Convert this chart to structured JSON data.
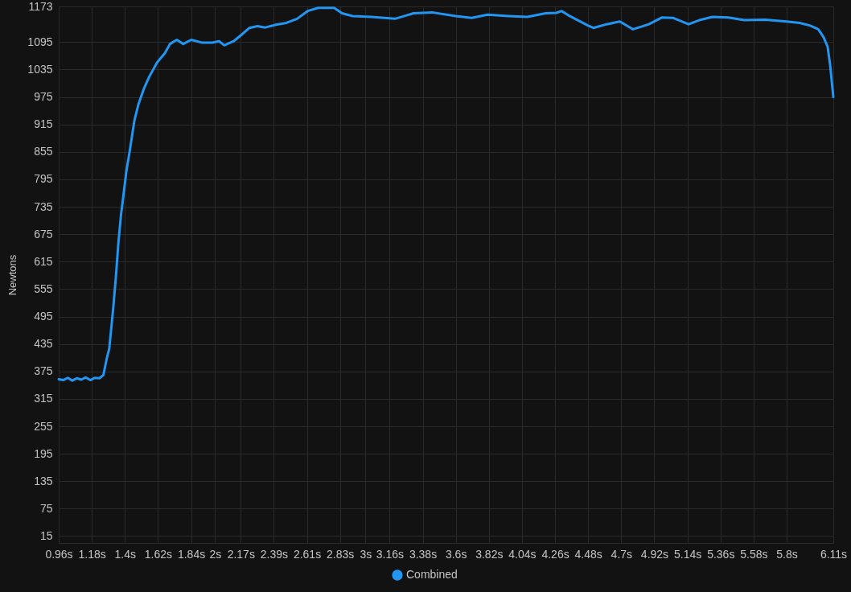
{
  "chart_data": {
    "type": "line",
    "ylabel": "Newtons",
    "x": [
      0.96,
      0.99,
      1.02,
      1.05,
      1.08,
      1.11,
      1.14,
      1.17,
      1.2,
      1.23,
      1.257,
      1.278,
      1.296,
      1.322,
      1.34,
      1.357,
      1.375,
      1.384,
      1.41,
      1.433,
      1.463,
      1.489,
      1.525,
      1.56,
      1.613,
      1.666,
      1.7,
      1.745,
      1.788,
      1.841,
      1.911,
      1.982,
      2.026,
      2.061,
      2.123,
      2.175,
      2.228,
      2.281,
      2.334,
      2.404,
      2.474,
      2.545,
      2.615,
      2.686,
      2.791,
      2.844,
      2.914,
      3.038,
      3.196,
      3.319,
      3.442,
      3.6,
      3.706,
      3.811,
      3.952,
      4.075,
      4.198,
      4.269,
      4.304,
      4.357,
      4.48,
      4.515,
      4.603,
      4.691,
      4.779,
      4.884,
      4.972,
      5.043,
      5.148,
      5.219,
      5.307,
      5.412,
      5.518,
      5.658,
      5.799,
      5.887,
      5.957,
      6.01,
      6.045,
      6.072,
      6.089,
      6.11
    ],
    "series": [
      {
        "name": "Combined",
        "color": "#2196f3",
        "values": [
          358,
          356,
          361,
          355,
          360,
          357,
          362,
          356,
          361,
          360,
          367,
          401,
          425,
          512,
          581,
          657,
          720,
          743,
          813,
          859,
          923,
          958,
          992,
          1018,
          1050,
          1071,
          1091,
          1100,
          1091,
          1100,
          1094,
          1094,
          1097,
          1088,
          1097,
          1111,
          1126,
          1130,
          1127,
          1133,
          1137,
          1146,
          1163,
          1170,
          1170,
          1158,
          1152,
          1150,
          1146,
          1158,
          1160,
          1152,
          1148,
          1155,
          1152,
          1150,
          1158,
          1159,
          1163,
          1152,
          1131,
          1126,
          1134,
          1140,
          1123,
          1134,
          1149,
          1148,
          1134,
          1143,
          1150,
          1149,
          1143,
          1144,
          1140,
          1137,
          1131,
          1123,
          1106,
          1085,
          1045,
          975
        ]
      }
    ],
    "xlim": [
      0.96,
      6.11
    ],
    "ylim": [
      0,
      1173
    ],
    "xticks": [
      {
        "value": 0.96,
        "label": "0.96s"
      },
      {
        "value": 1.18,
        "label": "1.18s"
      },
      {
        "value": 1.4,
        "label": "1.4s"
      },
      {
        "value": 1.62,
        "label": "1.62s"
      },
      {
        "value": 1.84,
        "label": "1.84s"
      },
      {
        "value": 2,
        "label": "2s"
      },
      {
        "value": 2.17,
        "label": "2.17s"
      },
      {
        "value": 2.39,
        "label": "2.39s"
      },
      {
        "value": 2.61,
        "label": "2.61s"
      },
      {
        "value": 2.83,
        "label": "2.83s"
      },
      {
        "value": 3,
        "label": "3s"
      },
      {
        "value": 3.16,
        "label": "3.16s"
      },
      {
        "value": 3.38,
        "label": "3.38s"
      },
      {
        "value": 3.6,
        "label": "3.6s"
      },
      {
        "value": 3.82,
        "label": "3.82s"
      },
      {
        "value": 4.04,
        "label": "4.04s"
      },
      {
        "value": 4.26,
        "label": "4.26s"
      },
      {
        "value": 4.48,
        "label": "4.48s"
      },
      {
        "value": 4.7,
        "label": "4.7s"
      },
      {
        "value": 4.92,
        "label": "4.92s"
      },
      {
        "value": 5.14,
        "label": "5.14s"
      },
      {
        "value": 5.36,
        "label": "5.36s"
      },
      {
        "value": 5.58,
        "label": "5.58s"
      },
      {
        "value": 5.8,
        "label": "5.8s"
      },
      {
        "value": 6.11,
        "label": "6.11s"
      }
    ],
    "yticks": [
      15,
      75,
      135,
      195,
      255,
      315,
      375,
      435,
      495,
      555,
      615,
      675,
      735,
      795,
      855,
      915,
      975,
      1035,
      1095,
      1173
    ],
    "grid": true,
    "legend": "bottom",
    "line_style": "solid"
  }
}
